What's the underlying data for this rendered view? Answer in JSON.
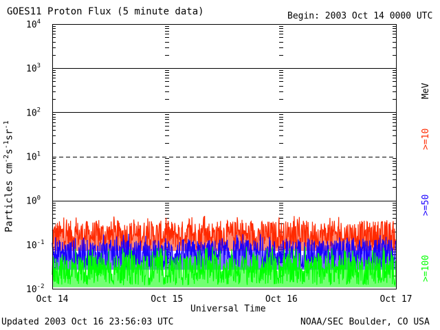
{
  "header": {
    "title": "GOES11 Proton Flux (5 minute data)",
    "begin": "Begin: 2003 Oct 14 0000 UTC"
  },
  "footer": {
    "updated": "Updated 2003 Oct 16 23:56:03 UTC",
    "source": "NOAA/SEC Boulder, CO USA"
  },
  "axis": {
    "ylabel_main": "Particles cm",
    "ylabel_sup1": "-2",
    "ylabel_mid1": "s",
    "ylabel_sup2": "-1",
    "ylabel_mid2": "sr",
    "ylabel_sup3": "-1",
    "xlabel": "Universal Time",
    "unit": "MeV"
  },
  "colors": {
    "red": "#ff2a00",
    "blue": "#1a00ff",
    "green": "#00ff00",
    "grid": "#000000"
  },
  "chart_data": {
    "type": "line",
    "y_scale": "log",
    "ylim": [
      0.01,
      10000
    ],
    "yticks": [
      {
        "base": "10",
        "exp": "-2",
        "value": 0.01
      },
      {
        "base": "10",
        "exp": "-1",
        "value": 0.1
      },
      {
        "base": "10",
        "exp": "0",
        "value": 1
      },
      {
        "base": "10",
        "exp": "1",
        "value": 10
      },
      {
        "base": "10",
        "exp": "2",
        "value": 100
      },
      {
        "base": "10",
        "exp": "3",
        "value": 1000
      },
      {
        "base": "10",
        "exp": "4",
        "value": 10000
      }
    ],
    "xticks": [
      "Oct 14",
      "Oct 15",
      "Oct 16",
      "Oct 17"
    ],
    "xlim": [
      "2003-10-14",
      "2003-10-17"
    ],
    "hlines": [
      {
        "value": 1,
        "style": "solid"
      },
      {
        "value": 10,
        "style": "dashed"
      },
      {
        "value": 100,
        "style": "solid"
      },
      {
        "value": 1000,
        "style": "solid"
      }
    ],
    "series": [
      {
        "name": ">=10",
        "color": "#ff2a00",
        "baseline": 0.15,
        "typical_range": [
          0.08,
          0.35
        ],
        "max": 0.45
      },
      {
        "name": ">=50",
        "color": "#1a00ff",
        "baseline": 0.07,
        "typical_range": [
          0.03,
          0.13
        ],
        "max": 0.18
      },
      {
        "name": ">=100",
        "color": "#00ff00",
        "baseline": 0.025,
        "typical_range": [
          0.012,
          0.06
        ],
        "max": 0.09
      }
    ]
  }
}
